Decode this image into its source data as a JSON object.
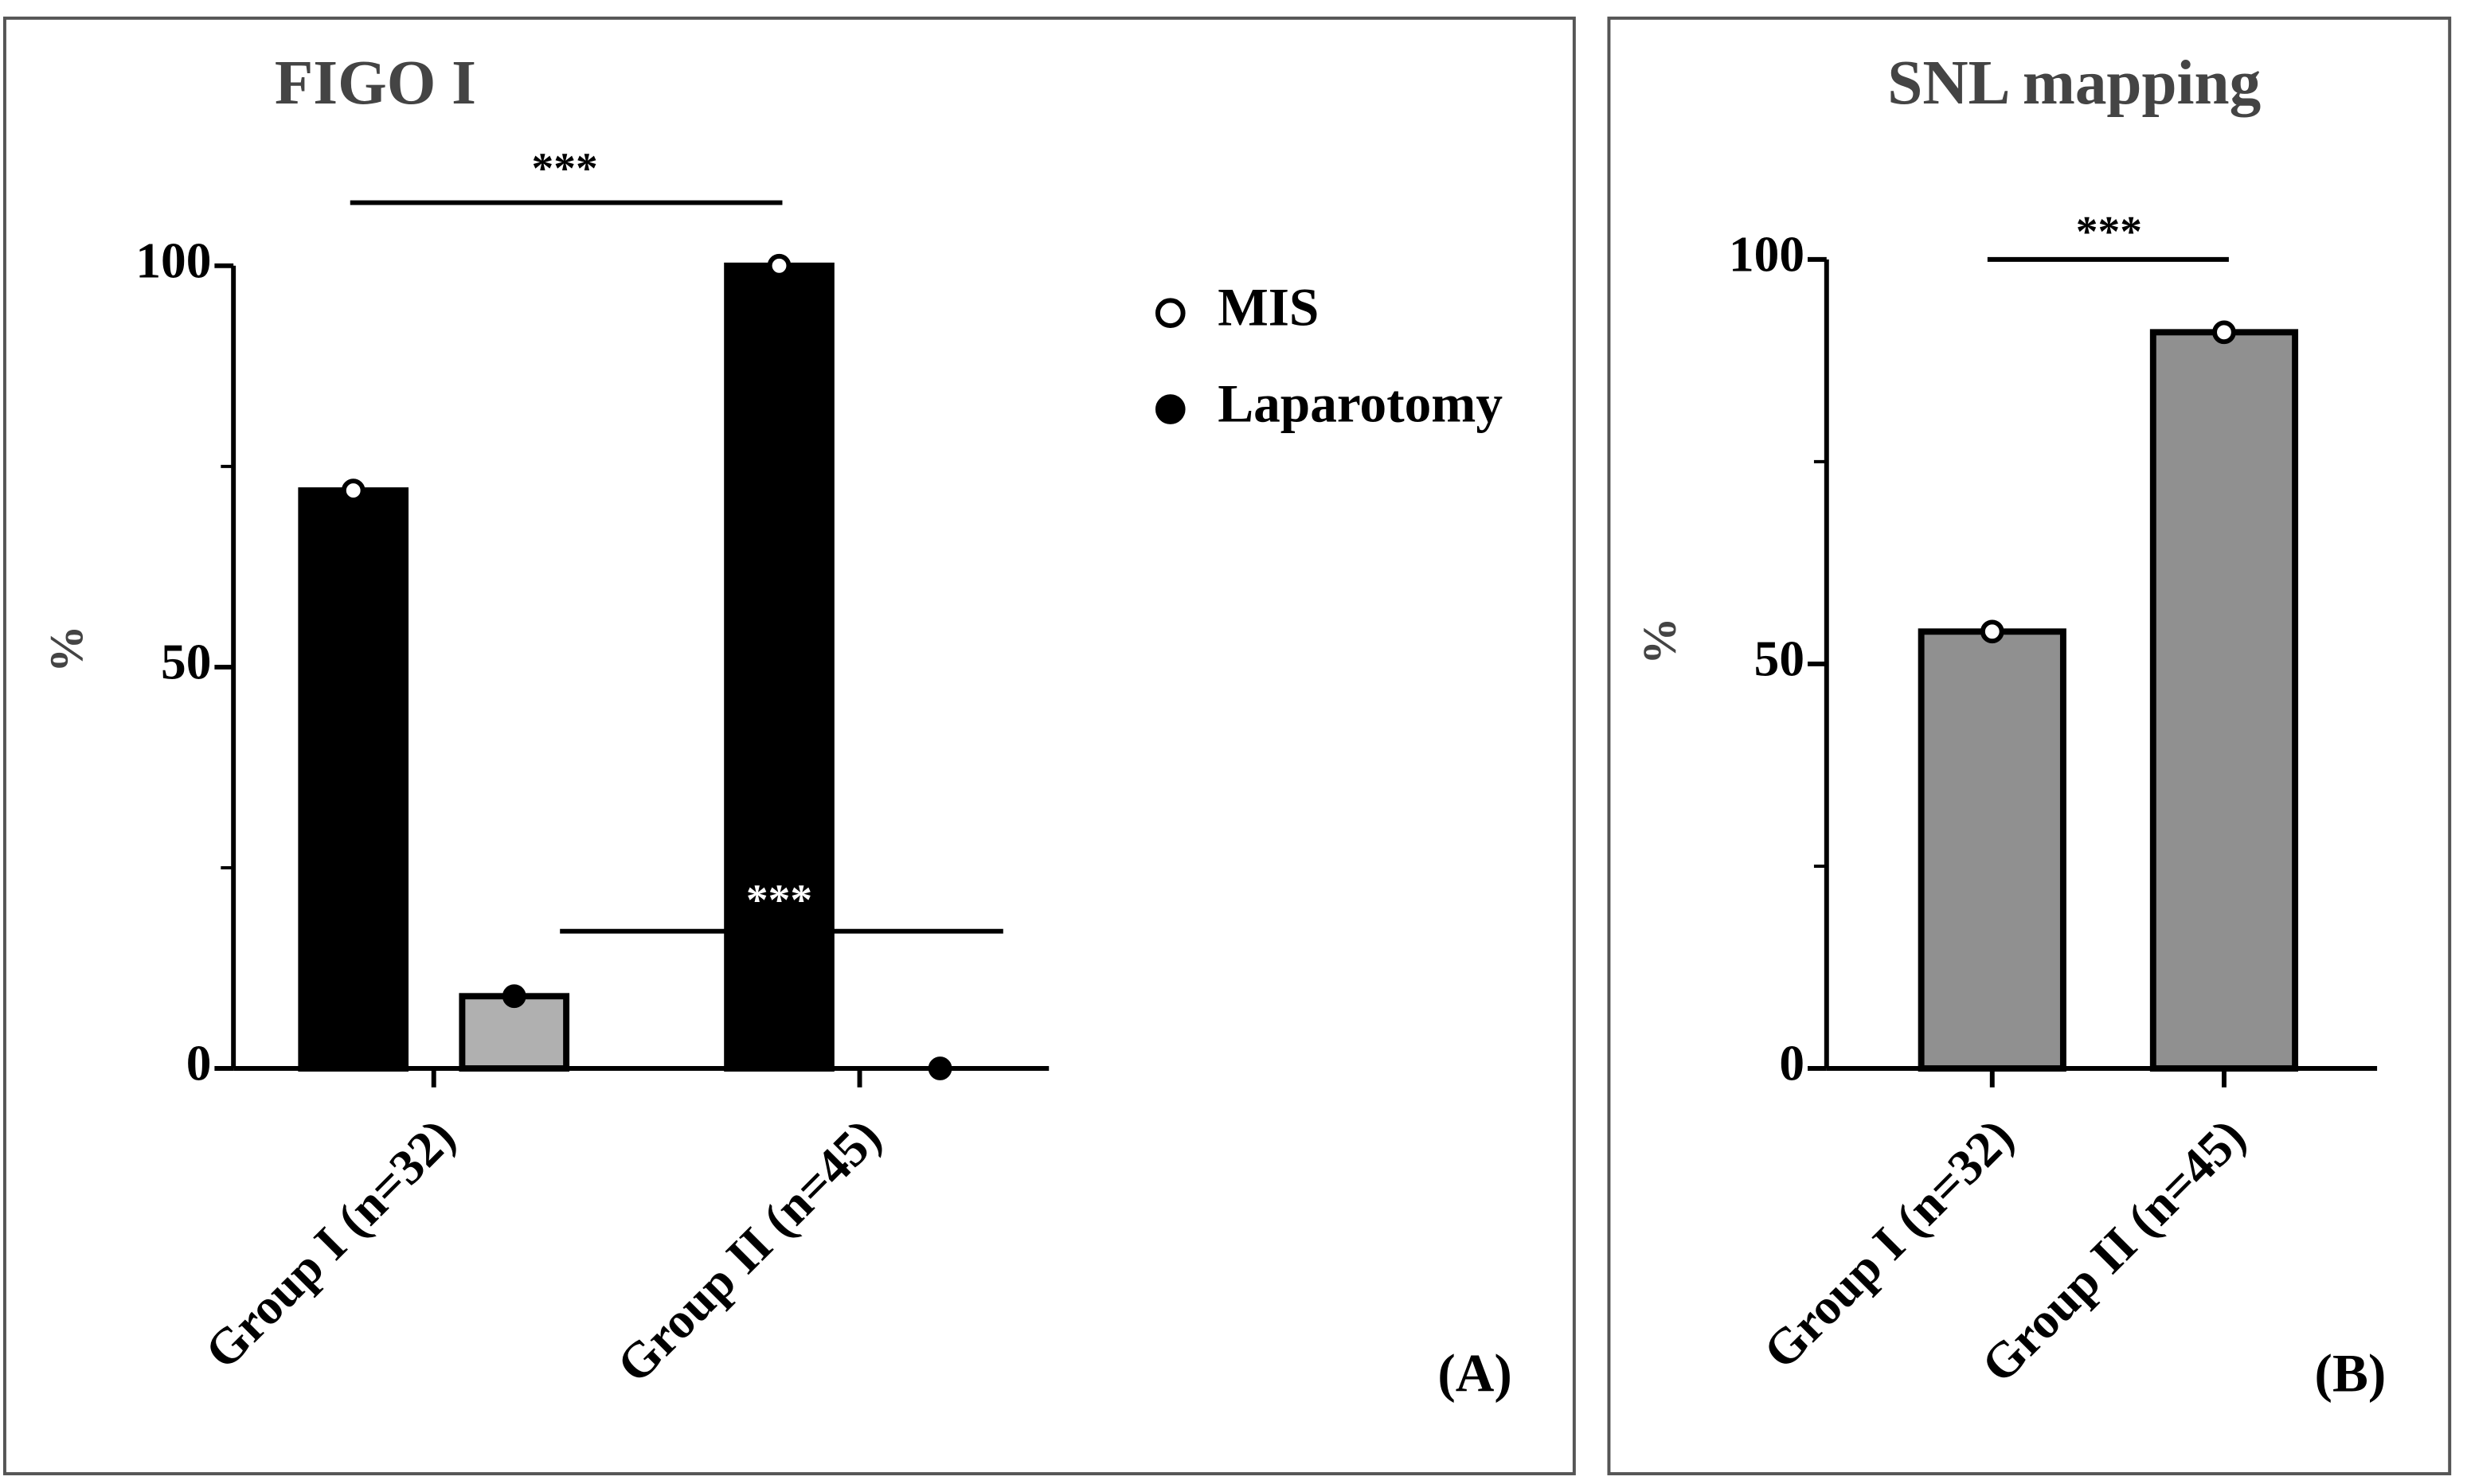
{
  "chart_data": [
    {
      "type": "bar",
      "title": "FIGO I",
      "ylabel": "%",
      "panel_label": "(A)",
      "categories": [
        "Group I (n=32)",
        "Group II (n=45)"
      ],
      "series": [
        {
          "name": "MIS",
          "color": "#000000",
          "marker": "open",
          "values": [
            72,
            100
          ]
        },
        {
          "name": "Laparotomy",
          "color": "#b0b0b0",
          "marker": "filled",
          "values": [
            9,
            0
          ]
        }
      ],
      "ylim": [
        0,
        100
      ],
      "yticks": [
        0,
        50,
        100
      ],
      "minor_yticks": [
        25,
        75
      ],
      "annotations": [
        "***",
        "***"
      ],
      "legend": "right"
    },
    {
      "type": "bar",
      "title": "SNL mapping",
      "ylabel": "%",
      "panel_label": "(B)",
      "categories": [
        "Group I (n=32)",
        "Group II (n=45)"
      ],
      "series": [
        {
          "name": "SNL mapping",
          "color": "#909090",
          "marker": "open",
          "values": [
            54,
            91
          ]
        }
      ],
      "ylim": [
        0,
        100
      ],
      "yticks": [
        0,
        50,
        100
      ],
      "minor_yticks": [
        25,
        75
      ],
      "annotations": [
        "***"
      ]
    }
  ]
}
